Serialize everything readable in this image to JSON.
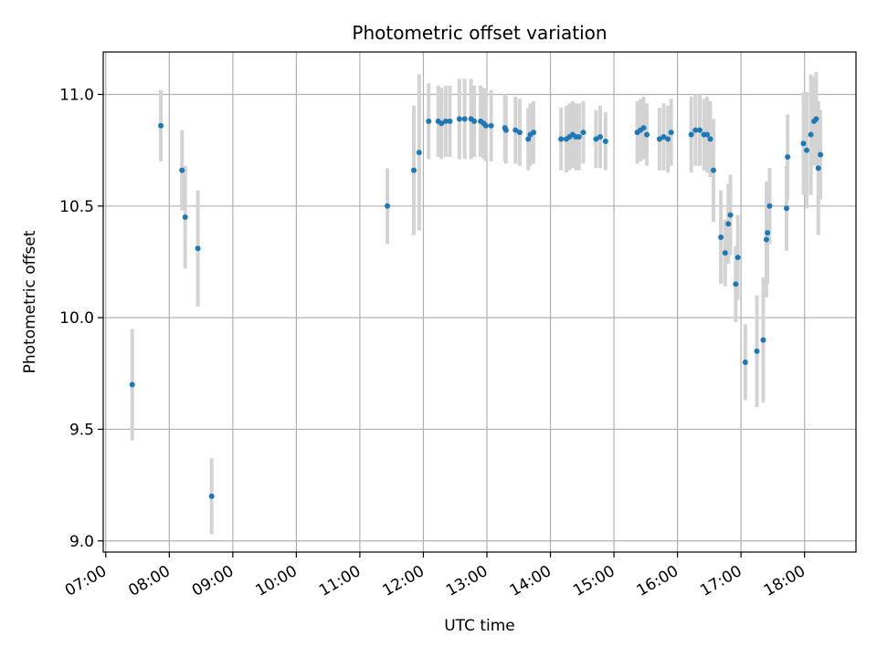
{
  "chart_data": {
    "type": "scatter",
    "title": "Photometric offset variation",
    "xlabel": "UTC time",
    "ylabel": "Photometric offset",
    "x_unit": "UTC hour of day",
    "xlim": [
      6.96,
      18.81
    ],
    "ylim": [
      8.95,
      11.19
    ],
    "grid": true,
    "x_ticks": [
      7,
      8,
      9,
      10,
      11,
      12,
      13,
      14,
      15,
      16,
      17,
      18
    ],
    "x_tick_labels": [
      "07:00",
      "08:00",
      "09:00",
      "10:00",
      "11:00",
      "12:00",
      "13:00",
      "14:00",
      "15:00",
      "16:00",
      "17:00",
      "18:00"
    ],
    "y_ticks": [
      9.0,
      9.5,
      10.0,
      10.5,
      11.0
    ],
    "y_tick_labels": [
      "9.0",
      "9.5",
      "10.0",
      "10.5",
      "11.0"
    ],
    "marker_color": "#1f77b4",
    "errorbar_color": "#d3d3d3",
    "series": [
      {
        "x": [
          "07:25",
          "07:52",
          "08:12",
          "08:15",
          "08:27",
          "08:40",
          "11:26",
          "11:51",
          "11:56",
          "12:05",
          "12:14",
          "12:17",
          "12:21",
          "12:25",
          "12:34",
          "12:39",
          "12:45",
          "12:48",
          "12:54",
          "12:57",
          "12:59",
          "13:04",
          "13:17",
          "13:18",
          "13:27",
          "13:31",
          "13:39",
          "13:41",
          "13:44",
          "14:10",
          "14:15",
          "14:18",
          "14:21",
          "14:24",
          "14:27",
          "14:31",
          "14:43",
          "14:47",
          "14:52",
          "15:22",
          "15:25",
          "15:28",
          "15:31",
          "15:43",
          "15:47",
          "15:51",
          "15:54",
          "16:13",
          "16:17",
          "16:21",
          "16:25",
          "16:28",
          "16:31",
          "16:34",
          "16:41",
          "16:45",
          "16:48",
          "16:50",
          "16:55",
          "16:57",
          "17:04",
          "17:15",
          "17:21",
          "17:24",
          "17:25",
          "17:27",
          "17:43",
          "17:44",
          "17:59",
          "18:02",
          "18:06",
          "18:09",
          "18:11",
          "18:13",
          "18:15"
        ],
        "y": [
          9.7,
          10.86,
          10.66,
          10.45,
          10.31,
          9.2,
          10.5,
          10.66,
          10.74,
          10.88,
          10.88,
          10.87,
          10.88,
          10.88,
          10.89,
          10.89,
          10.89,
          10.88,
          10.88,
          10.87,
          10.86,
          10.86,
          10.85,
          10.84,
          10.84,
          10.83,
          10.8,
          10.82,
          10.83,
          10.8,
          10.8,
          10.81,
          10.82,
          10.81,
          10.81,
          10.83,
          10.8,
          10.81,
          10.79,
          10.83,
          10.84,
          10.85,
          10.82,
          10.8,
          10.81,
          10.8,
          10.83,
          10.82,
          10.84,
          10.84,
          10.82,
          10.82,
          10.8,
          10.66,
          10.36,
          10.29,
          10.42,
          10.46,
          10.15,
          10.27,
          9.8,
          9.85,
          9.9,
          10.35,
          10.38,
          10.5,
          10.49,
          10.72,
          10.78,
          10.75,
          10.82,
          10.88,
          10.89,
          10.67,
          10.73
        ],
        "yerr": [
          0.25,
          0.16,
          0.18,
          0.23,
          0.26,
          0.17,
          0.17,
          0.29,
          0.35,
          0.17,
          0.16,
          0.16,
          0.16,
          0.16,
          0.18,
          0.18,
          0.18,
          0.16,
          0.16,
          0.16,
          0.16,
          0.16,
          0.15,
          0.15,
          0.15,
          0.15,
          0.14,
          0.14,
          0.14,
          0.14,
          0.15,
          0.15,
          0.15,
          0.15,
          0.15,
          0.14,
          0.13,
          0.14,
          0.13,
          0.14,
          0.14,
          0.14,
          0.14,
          0.14,
          0.15,
          0.15,
          0.15,
          0.17,
          0.16,
          0.16,
          0.16,
          0.17,
          0.17,
          0.23,
          0.21,
          0.15,
          0.18,
          0.18,
          0.17,
          0.19,
          0.17,
          0.25,
          0.28,
          0.26,
          0.23,
          0.17,
          0.19,
          0.19,
          0.23,
          0.26,
          0.27,
          0.2,
          0.21,
          0.3,
          0.2
        ]
      }
    ]
  }
}
